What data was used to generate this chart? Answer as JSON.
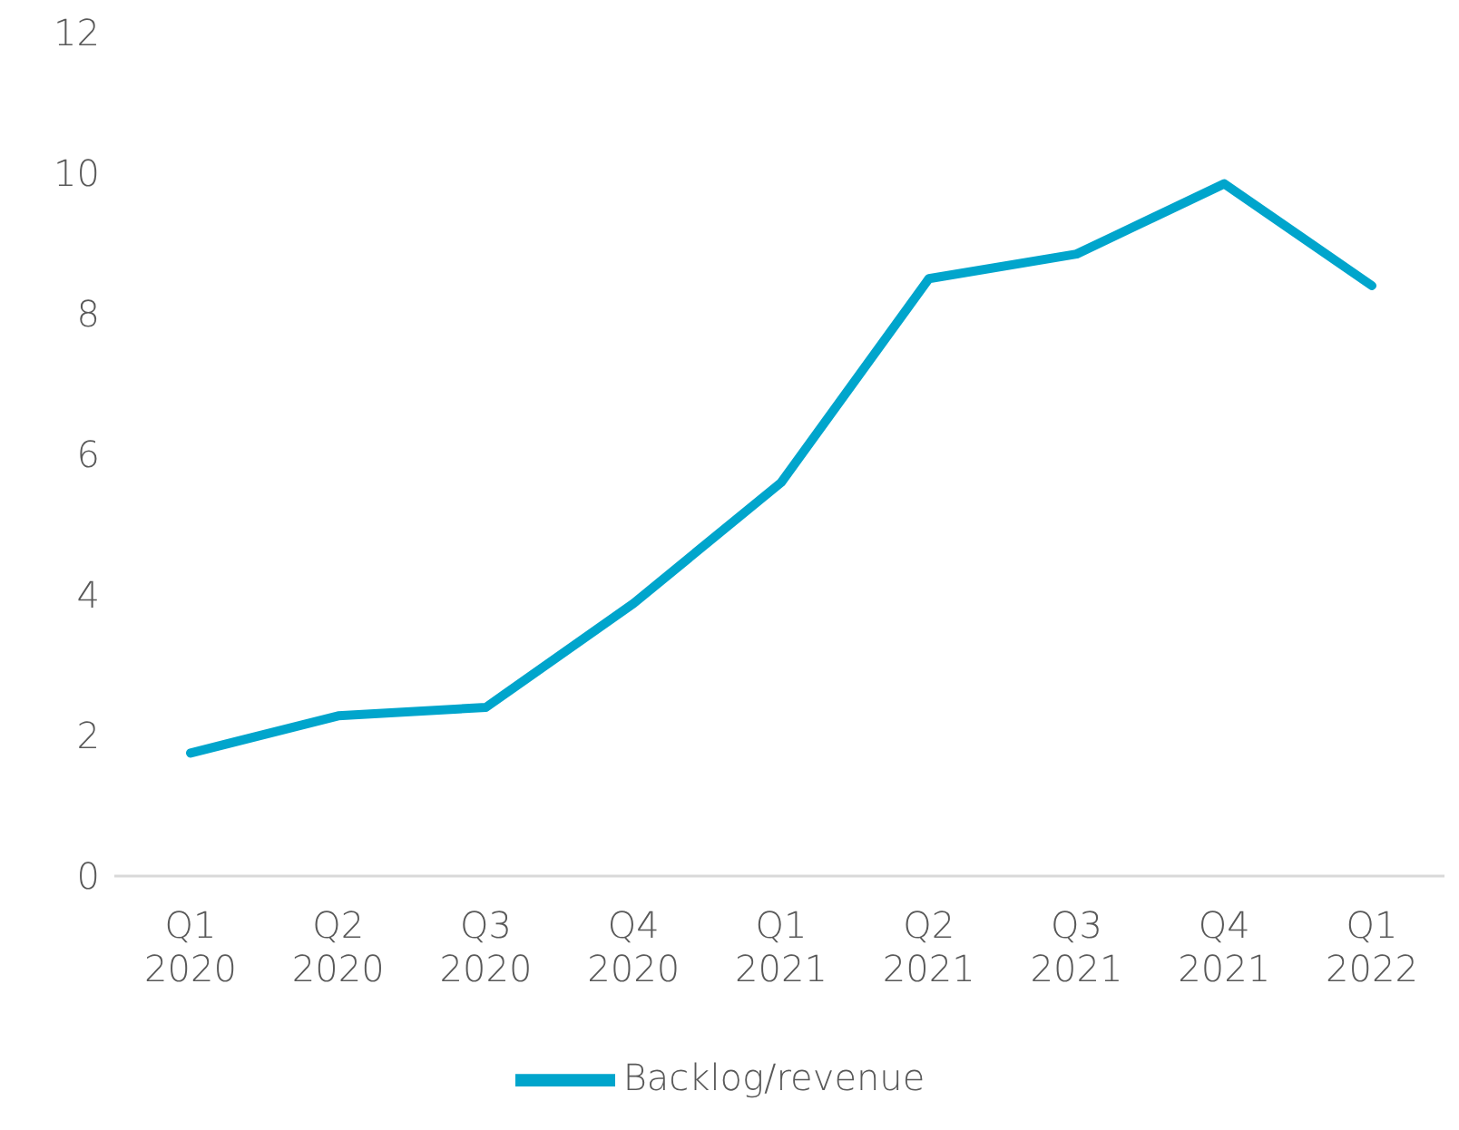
{
  "chart_data": {
    "type": "line",
    "categories": [
      "Q1 2020",
      "Q2 2020",
      "Q3 2020",
      "Q4 2020",
      "Q1 2021",
      "Q2 2021",
      "Q3 2021",
      "Q4 2021",
      "Q1 2022"
    ],
    "series": [
      {
        "name": "Backlog/revenue",
        "color": "#00a5cc",
        "values": [
          1.75,
          2.28,
          2.4,
          3.88,
          5.6,
          8.5,
          8.85,
          9.85,
          8.4
        ]
      }
    ],
    "ylim": [
      0,
      12
    ],
    "yticks": [
      0,
      2,
      4,
      6,
      8,
      10,
      12
    ],
    "grid": false,
    "legend": "bottom",
    "marker": "none",
    "line_style": "solid"
  }
}
